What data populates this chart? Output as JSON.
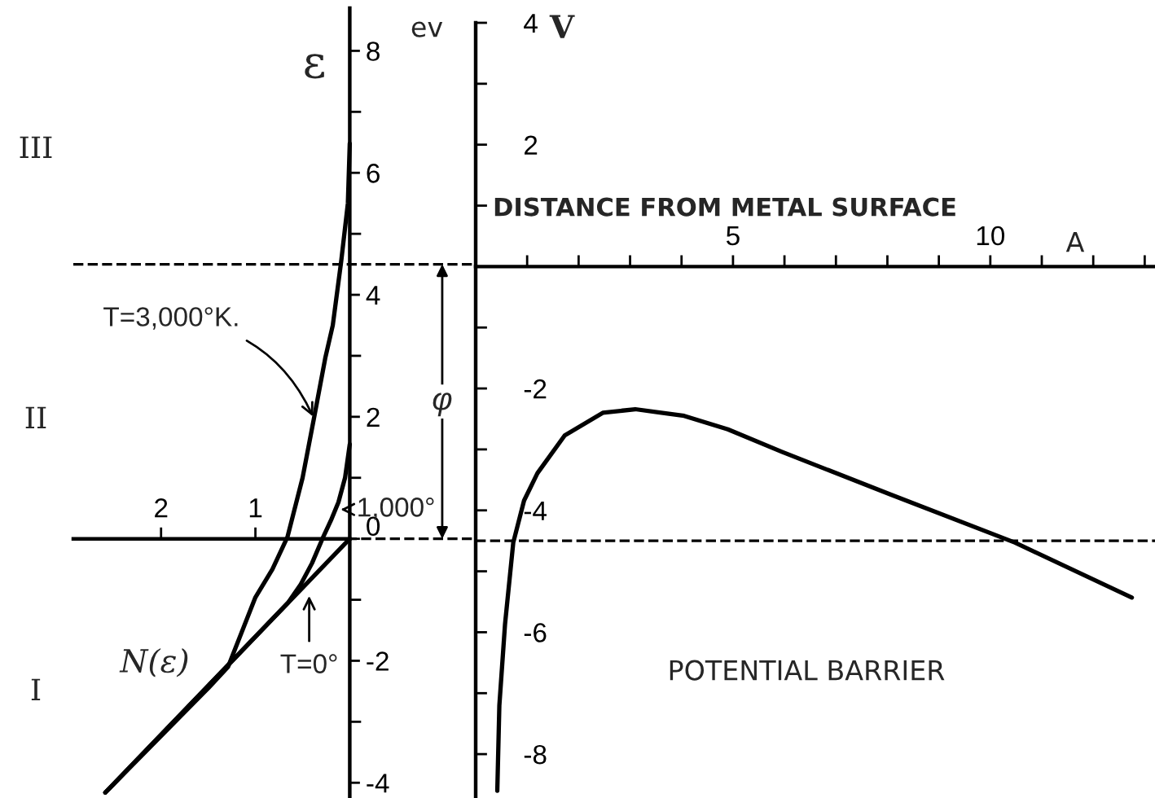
{
  "chart_data": [
    {
      "type": "line",
      "xlabel": "N(ε)",
      "ylabel": "ε",
      "xlim": [
        2.93,
        -1.3
      ],
      "ylim": [
        -4.25,
        8.7
      ],
      "xticks": [
        2,
        1
      ],
      "yticks": [
        -4,
        {
          "value": -3,
          "label": null
        },
        -2,
        {
          "value": -1,
          "label": null
        },
        0,
        {
          "value": 1,
          "label": null
        },
        2,
        {
          "value": 3,
          "label": null
        },
        4,
        {
          "value": 5,
          "label": null
        },
        6,
        {
          "value": 7,
          "label": null
        },
        8
      ],
      "series": [
        {
          "color": "#000000",
          "x": [
            0,
            2.59
          ],
          "values": [
            0,
            -4.16
          ]
        },
        {
          "color": "#000000",
          "x": [
            0,
            0.05,
            0.12,
            0.2,
            0.29,
            0.4,
            0.52,
            0.65,
            1.5,
            2.59
          ],
          "values": [
            1.55,
            1.0,
            0.6,
            0.3,
            0,
            -0.4,
            -0.75,
            -1.04,
            -2.41,
            -4.16
          ]
        },
        {
          "color": "#000000",
          "x": [
            0,
            0.02,
            0.09,
            0.18,
            0.26,
            0.38,
            0.5,
            0.66,
            0.82,
            1.0,
            1.29,
            1.5,
            2.59
          ],
          "values": [
            6.48,
            5.5,
            4.56,
            3.5,
            2.96,
            1.97,
            1.0,
            0.03,
            -0.5,
            -0.96,
            -2.1,
            -2.45,
            -4.16
          ]
        }
      ],
      "ref_lines": [
        {
          "axis": "y",
          "value": 4.5,
          "line_style": "dashed",
          "color": "#000000"
        },
        {
          "axis": "y",
          "value": 0,
          "line_style": "dashed",
          "color": "#000000"
        }
      ],
      "annotations": [
        {
          "text": "T=3,000°K.",
          "x": 0.38,
          "y": 1.97
        },
        {
          "text": "1,000°",
          "x": 0.12,
          "y": 0.48
        },
        {
          "text": "T=0°",
          "x": 0.43,
          "y": -0.9
        },
        {
          "text": "φ",
          "x": -0.98,
          "y": 2.25
        },
        "I",
        "II",
        "III"
      ]
    },
    {
      "type": "line",
      "xlabel": "DISTANCE FROM METAL SURFACE",
      "ylabel": "V",
      "xlim": [
        0,
        13.2
      ],
      "ylim": [
        -8.72,
        4.0
      ],
      "xticks": [
        {
          "value": 1,
          "label": null
        },
        {
          "value": 2,
          "label": null
        },
        {
          "value": 3,
          "label": null
        },
        {
          "value": 4,
          "label": null
        },
        5,
        {
          "value": 6,
          "label": null
        },
        {
          "value": 7,
          "label": null
        },
        {
          "value": 8,
          "label": null
        },
        {
          "value": 9,
          "label": null
        },
        10,
        {
          "value": 11,
          "label": null
        },
        {
          "value": 12,
          "label": null
        },
        {
          "value": 13,
          "label": null
        }
      ],
      "yticks": [
        -8,
        {
          "value": -7,
          "label": null
        },
        -6,
        {
          "value": -5,
          "label": null
        },
        -4,
        {
          "value": -3,
          "label": null
        },
        -2,
        {
          "value": -1,
          "label": null
        },
        {
          "value": 1,
          "label": null
        },
        2,
        {
          "value": 3,
          "label": null
        },
        4
      ],
      "series": [
        {
          "color": "#000000",
          "x": [
            0.42,
            0.46,
            0.57,
            0.73,
            0.94,
            1.2,
            1.73,
            2.47,
            3.1,
            4.05,
            4.9,
            5.95,
            8.06,
            10.48,
            12.75
          ],
          "values": [
            -8.6,
            -7.2,
            -5.87,
            -4.53,
            -3.84,
            -3.39,
            -2.77,
            -2.4,
            -2.34,
            -2.45,
            -2.67,
            -3.04,
            -3.74,
            -4.53,
            -5.43
          ]
        }
      ],
      "ref_lines": [
        {
          "axis": "y",
          "value": -4.5,
          "line_style": "dashed",
          "color": "#000000"
        }
      ],
      "annotations": [
        "ev",
        "A",
        "POTENTIAL BARRIER"
      ]
    }
  ]
}
